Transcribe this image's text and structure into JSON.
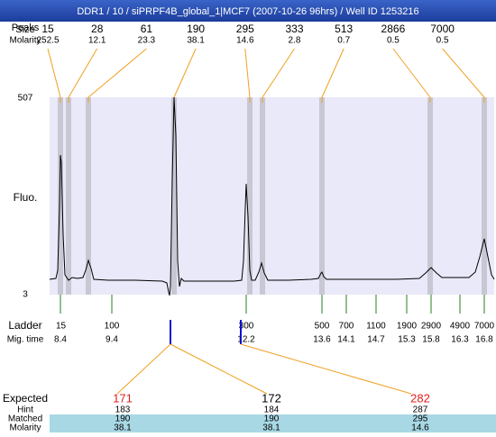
{
  "header": {
    "title": "DDR1 / 10 / siPRPF4B_global_1|MCF7 (2007-10-26 96hrs) / Well ID 1253216"
  },
  "left_labels": {
    "peaks": "Peaks",
    "size": "Size",
    "molarity": "Molarity"
  },
  "peaks": [
    {
      "size": "15",
      "molarity": "252.5"
    },
    {
      "size": "28",
      "molarity": "12.1"
    },
    {
      "size": "61",
      "molarity": "23.3"
    },
    {
      "size": "190",
      "molarity": "38.1"
    },
    {
      "size": "295",
      "molarity": "14.6"
    },
    {
      "size": "333",
      "molarity": "2.8"
    },
    {
      "size": "513",
      "molarity": "0.7"
    },
    {
      "size": "2866",
      "molarity": "0.5"
    },
    {
      "size": "7000",
      "molarity": "0.5"
    }
  ],
  "plot": {
    "y_max": "507",
    "y_min": "3",
    "y_label": "Fluo."
  },
  "ladder": {
    "label": "Ladder",
    "mig_label": "Mig. time",
    "bands": [
      {
        "size": "15",
        "mig_time": "8.4"
      },
      {
        "size": "100",
        "mig_time": "9.4"
      },
      {
        "size": "300",
        "mig_time": "12.2"
      },
      {
        "size": "500",
        "mig_time": "13.6"
      },
      {
        "size": "700",
        "mig_time": "14.1"
      },
      {
        "size": "1100",
        "mig_time": "14.7"
      },
      {
        "size": "1900",
        "mig_time": "15.3"
      },
      {
        "size": "2900",
        "mig_time": "15.8"
      },
      {
        "size": "4900",
        "mig_time": "16.3"
      },
      {
        "size": "7000",
        "mig_time": "16.8"
      }
    ]
  },
  "expected": {
    "label": "Expected",
    "hint_label": "Hint",
    "matched_label": "Matched",
    "molarity_label": "Molarity",
    "columns": [
      {
        "expected": "171",
        "color": "#e02020",
        "hint": "183",
        "matched": "190",
        "molarity": "38.1"
      },
      {
        "expected": "172",
        "color": "#000000",
        "hint": "184",
        "matched": "190",
        "molarity": "38.1"
      },
      {
        "expected": "282",
        "color": "#e02020",
        "hint": "287",
        "matched": "295",
        "molarity": "14.6"
      }
    ]
  }
}
